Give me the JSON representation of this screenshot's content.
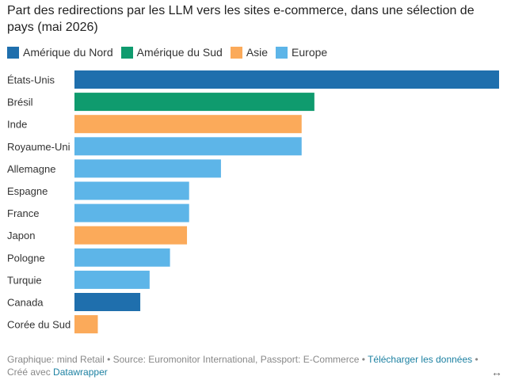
{
  "chart_data": {
    "type": "bar",
    "orientation": "horizontal",
    "title": "Part des redirections par les LLM vers les sites e-commerce, dans une sélection de pays (mai 2026)",
    "categories": [
      "États-Unis",
      "Brésil",
      "Inde",
      "Royaume-Uni",
      "Allemagne",
      "Espagne",
      "France",
      "Japon",
      "Pologne",
      "Turquie",
      "Canada",
      "Corée du Sud"
    ],
    "values": [
      100,
      56.5,
      53.5,
      53.5,
      34.5,
      27.0,
      27.0,
      26.5,
      22.5,
      17.7,
      15.5,
      5.5
    ],
    "groups": [
      "Amérique du Nord",
      "Amérique du Sud",
      "Asie",
      "Europe",
      "Europe",
      "Europe",
      "Europe",
      "Asie",
      "Europe",
      "Europe",
      "Amérique du Nord",
      "Asie"
    ],
    "legend": [
      {
        "name": "Amérique du Nord",
        "color": "#1f6fad"
      },
      {
        "name": "Amérique du Sud",
        "color": "#0f9b6e"
      },
      {
        "name": "Asie",
        "color": "#fbaa5a"
      },
      {
        "name": "Europe",
        "color": "#5db5e8"
      }
    ],
    "legend_position": "top-left",
    "xlim": [
      0,
      100
    ],
    "grid": false
  },
  "footer": {
    "prefix": "Graphique: mind Retail • Source: Euromonitor International, Passport: E-Commerce • ",
    "download_link": "Télécharger les données",
    "middle": " • Créé avec ",
    "datawrapper_link": "Datawrapper"
  },
  "icons": {
    "expand": "↔"
  }
}
